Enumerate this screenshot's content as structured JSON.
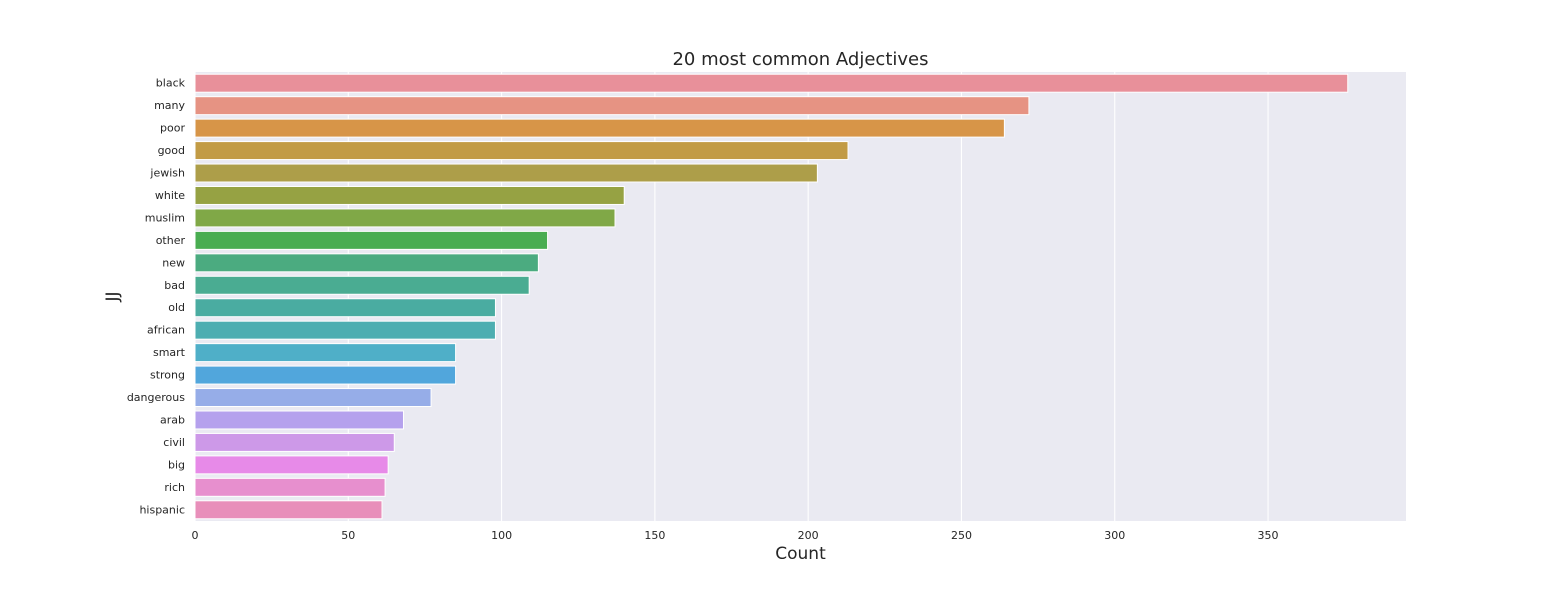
{
  "chart_data": {
    "type": "bar",
    "orientation": "horizontal",
    "title": "20 most common Adjectives",
    "xlabel": "Count",
    "ylabel": "JJ",
    "categories": [
      "black",
      "many",
      "poor",
      "good",
      "jewish",
      "white",
      "muslim",
      "other",
      "new",
      "bad",
      "old",
      "african",
      "smart",
      "strong",
      "dangerous",
      "arab",
      "civil",
      "big",
      "rich",
      "hispanic"
    ],
    "values": [
      376,
      272,
      264,
      213,
      203,
      140,
      137,
      115,
      112,
      109,
      98,
      98,
      85,
      85,
      77,
      68,
      65,
      63,
      62,
      61
    ],
    "colors": [
      "#e8909a",
      "#e69383",
      "#d79548",
      "#c29b45",
      "#ad9e49",
      "#96a243",
      "#80a847",
      "#49ad51",
      "#4bab80",
      "#4aac92",
      "#4aaca1",
      "#4daeb1",
      "#4fafc8",
      "#51a6dc",
      "#96ade8",
      "#b5a1ed",
      "#cd99e8",
      "#e78ae8",
      "#e78fce",
      "#e88fba"
    ],
    "xlim": [
      0,
      395
    ],
    "xticks": [
      0,
      50,
      100,
      150,
      200,
      250,
      300,
      350
    ],
    "grid": true,
    "background": "#eaeaf2",
    "gridColor": "#ffffff"
  }
}
